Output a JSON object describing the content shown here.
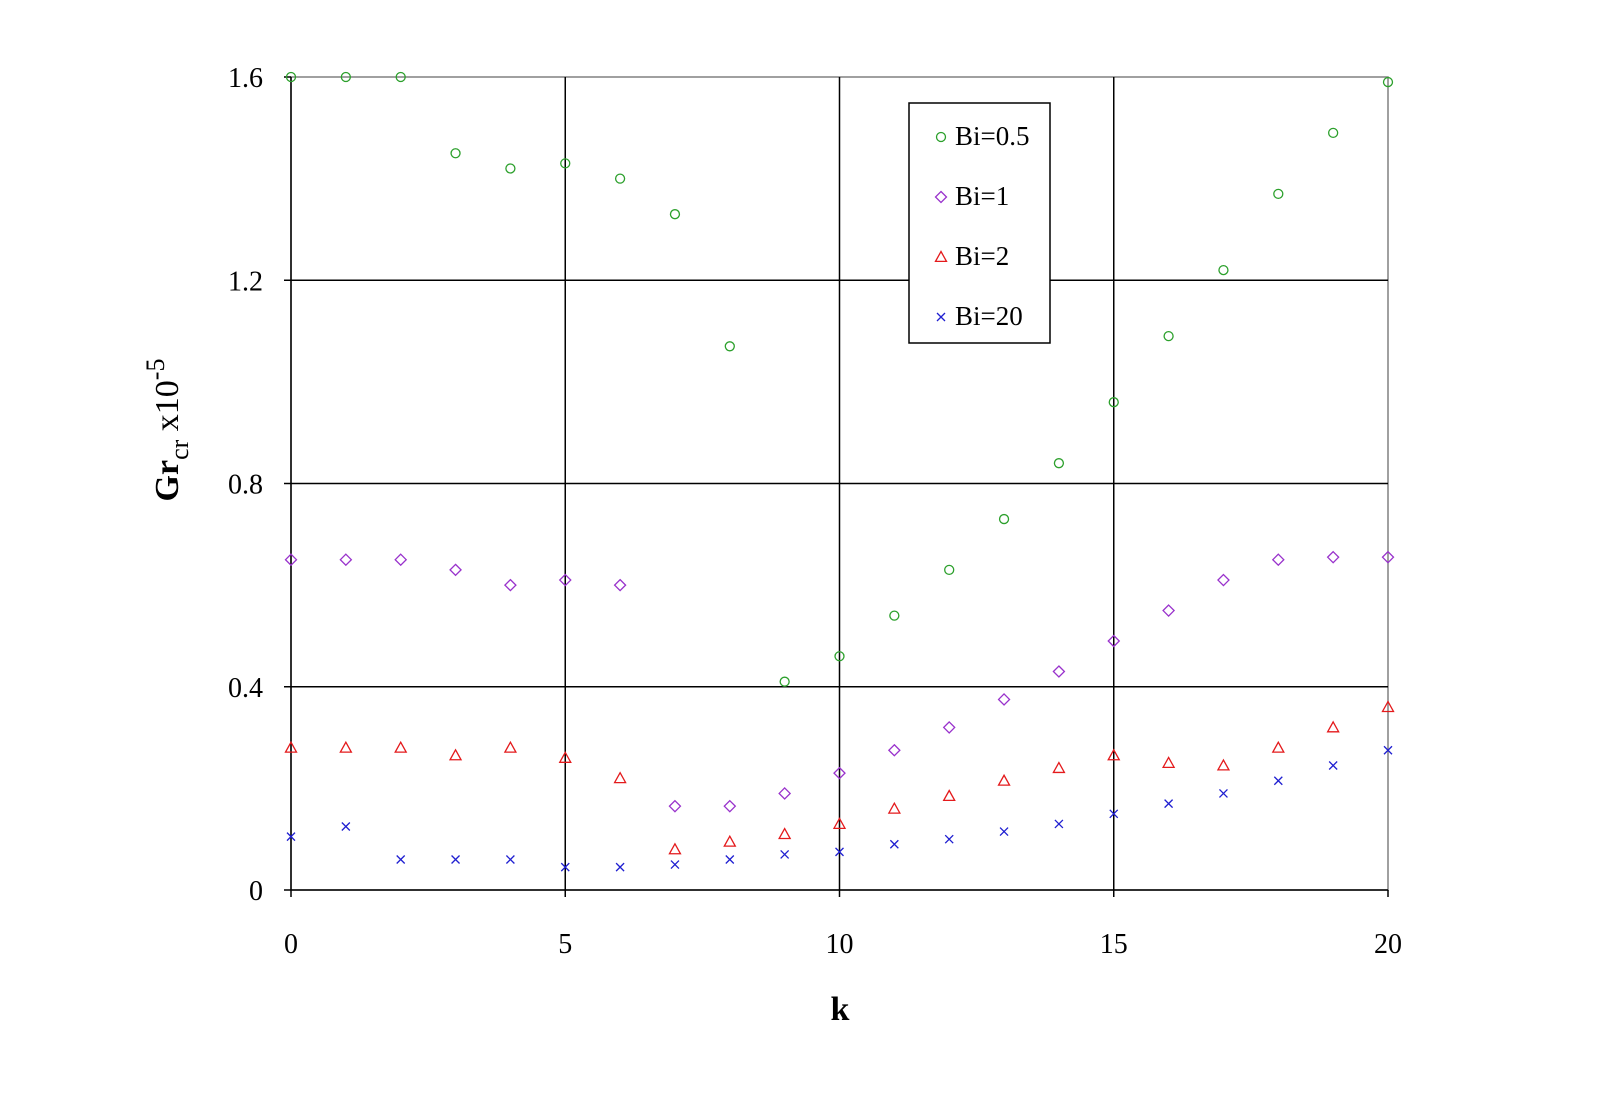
{
  "chart_data": {
    "type": "scatter",
    "xlabel": "k",
    "ylabel": {
      "main": "Gr",
      "subscript": "cr",
      "suffix": " x10",
      "superscript": "-5"
    },
    "xlim": [
      0,
      20
    ],
    "ylim": [
      0,
      1.6
    ],
    "x_ticks": [
      {
        "value": 0,
        "label": "0"
      },
      {
        "value": 5,
        "label": "5"
      },
      {
        "value": 10,
        "label": "10"
      },
      {
        "value": 15,
        "label": "15"
      },
      {
        "value": 20,
        "label": "20"
      }
    ],
    "y_ticks": [
      {
        "value": 0,
        "label": "0"
      },
      {
        "value": 0.4,
        "label": "0.4"
      },
      {
        "value": 0.8,
        "label": "0.8"
      },
      {
        "value": 1.2,
        "label": "1.2"
      },
      {
        "value": 1.6,
        "label": "1.6"
      }
    ],
    "grid": true,
    "legend_position": "top-right",
    "x": [
      0,
      1,
      2,
      3,
      4,
      5,
      6,
      7,
      8,
      9,
      10,
      11,
      12,
      13,
      14,
      15,
      16,
      17,
      18,
      19,
      20
    ],
    "series": [
      {
        "name": "Bi=0.5",
        "marker": "circle",
        "color": "#2ca02c",
        "values": [
          1.6,
          1.6,
          1.6,
          1.45,
          1.42,
          1.43,
          1.4,
          1.33,
          1.07,
          0.41,
          0.46,
          0.54,
          0.63,
          0.73,
          0.84,
          0.96,
          1.09,
          1.22,
          1.37,
          1.49,
          1.59
        ]
      },
      {
        "name": "Bi=1",
        "marker": "diamond",
        "color": "#9932cc",
        "values": [
          0.65,
          0.65,
          0.65,
          0.63,
          0.6,
          0.61,
          0.6,
          0.165,
          0.165,
          0.19,
          0.23,
          0.275,
          0.32,
          0.375,
          0.43,
          0.49,
          0.55,
          0.61,
          0.65,
          0.655,
          0.655
        ]
      },
      {
        "name": "Bi=2",
        "marker": "triangle",
        "color": "#e41a1c",
        "values": [
          0.28,
          0.28,
          0.28,
          0.265,
          0.28,
          0.26,
          0.22,
          0.08,
          0.095,
          0.11,
          0.13,
          0.16,
          0.185,
          0.215,
          0.24,
          0.265,
          0.25,
          0.245,
          0.28,
          0.32,
          0.36
        ]
      },
      {
        "name": "Bi=20",
        "marker": "x",
        "color": "#1f1fd1",
        "values": [
          0.105,
          0.125,
          0.06,
          0.06,
          0.06,
          0.045,
          0.045,
          0.05,
          0.06,
          0.07,
          0.075,
          0.09,
          0.1,
          0.115,
          0.13,
          0.15,
          0.17,
          0.19,
          0.215,
          0.245,
          0.275
        ]
      }
    ]
  }
}
